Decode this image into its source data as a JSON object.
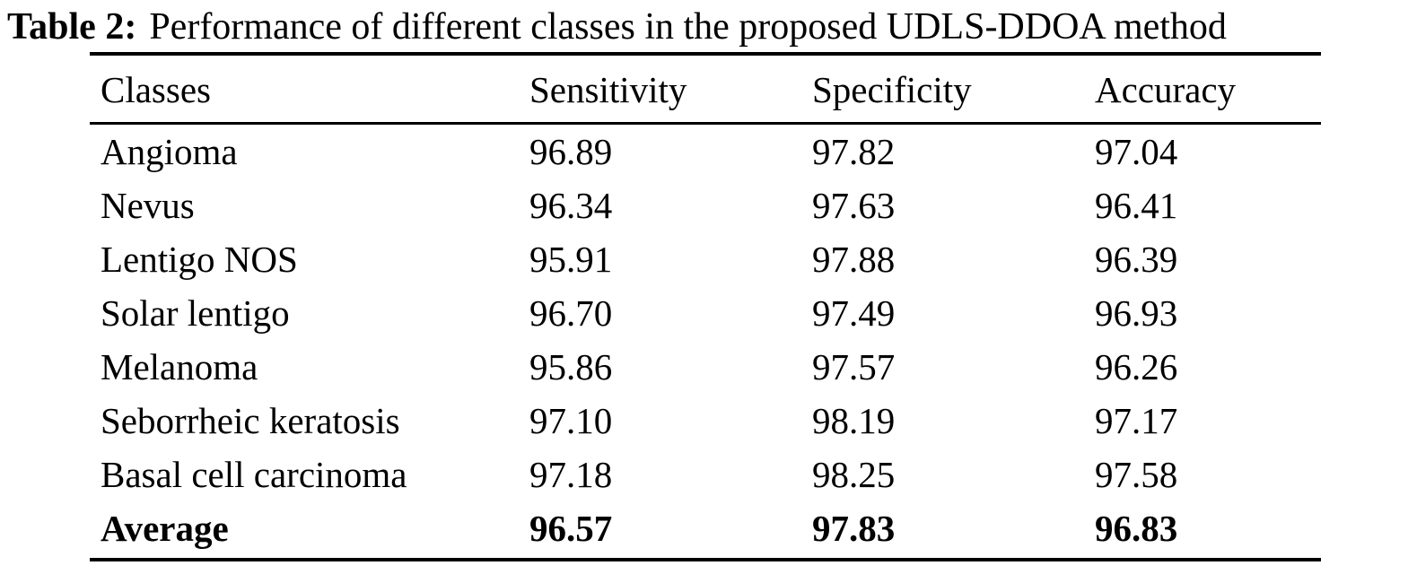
{
  "table": {
    "caption": {
      "label": "Table 2:",
      "text": "Performance of different classes in the proposed UDLS-DDOA method"
    },
    "columns": [
      "Classes",
      "Sensitivity",
      "Specificity",
      "Accuracy"
    ],
    "rows": [
      {
        "class": "Angioma",
        "sensitivity": "96.89",
        "specificity": "97.82",
        "accuracy": "97.04"
      },
      {
        "class": "Nevus",
        "sensitivity": "96.34",
        "specificity": "97.63",
        "accuracy": "96.41"
      },
      {
        "class": "Lentigo NOS",
        "sensitivity": "95.91",
        "specificity": "97.88",
        "accuracy": "96.39"
      },
      {
        "class": "Solar lentigo",
        "sensitivity": "96.70",
        "specificity": "97.49",
        "accuracy": "96.93"
      },
      {
        "class": "Melanoma",
        "sensitivity": "95.86",
        "specificity": "97.57",
        "accuracy": "96.26"
      },
      {
        "class": "Seborrheic keratosis",
        "sensitivity": "97.10",
        "specificity": "98.19",
        "accuracy": "97.17"
      },
      {
        "class": "Basal cell carcinoma",
        "sensitivity": "97.18",
        "specificity": "98.25",
        "accuracy": "97.58"
      }
    ],
    "average": {
      "class": "Average",
      "sensitivity": "96.57",
      "specificity": "97.83",
      "accuracy": "96.83"
    }
  },
  "chart_data": {
    "type": "table",
    "title": "Table 2: Performance of different classes in the proposed UDLS-DDOA method",
    "categories": [
      "Angioma",
      "Nevus",
      "Lentigo NOS",
      "Solar lentigo",
      "Melanoma",
      "Seborrheic keratosis",
      "Basal cell carcinoma",
      "Average"
    ],
    "series": [
      {
        "name": "Sensitivity",
        "values": [
          96.89,
          96.34,
          95.91,
          96.7,
          95.86,
          97.1,
          97.18,
          96.57
        ]
      },
      {
        "name": "Specificity",
        "values": [
          97.82,
          97.63,
          97.88,
          97.49,
          97.57,
          98.19,
          98.25,
          97.83
        ]
      },
      {
        "name": "Accuracy",
        "values": [
          97.04,
          96.41,
          96.39,
          96.93,
          96.26,
          97.17,
          97.58,
          96.83
        ]
      }
    ]
  }
}
